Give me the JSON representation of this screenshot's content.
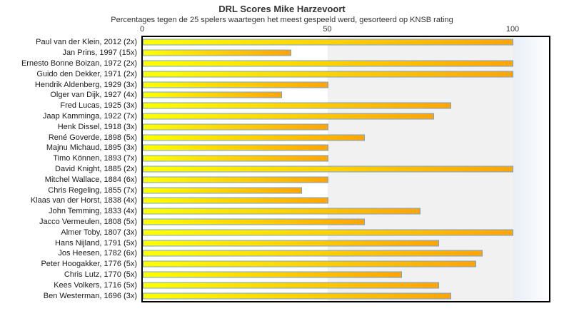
{
  "chart_data": {
    "type": "bar",
    "orientation": "horizontal",
    "title": "DRL Scores Mike Harzevoort",
    "subtitle": "Percentages tegen de 25 spelers waartegen het meest gespeeld werd, gesorteerd op KNSB rating",
    "xlim": [
      0,
      100
    ],
    "x_ticks": [
      0,
      50,
      100
    ],
    "legend": "none",
    "grid": "off",
    "players": [
      {
        "label": "Paul van der Klein, 2012 (2x)",
        "value": 100
      },
      {
        "label": "Jan Prins, 1997 (15x)",
        "value": 40
      },
      {
        "label": "Ernesto Bonne Boizan, 1972 (2x)",
        "value": 100
      },
      {
        "label": "Guido den Dekker, 1971 (2x)",
        "value": 100
      },
      {
        "label": "Hendrik Aldenberg, 1929 (3x)",
        "value": 50
      },
      {
        "label": "Olger van Dijk, 1927 (4x)",
        "value": 37.5
      },
      {
        "label": "Fred Lucas, 1925 (3x)",
        "value": 83.3
      },
      {
        "label": "Jaap Kamminga, 1922 (7x)",
        "value": 78.6
      },
      {
        "label": "Henk Dissel, 1918 (3x)",
        "value": 50
      },
      {
        "label": "René Goverde, 1898 (5x)",
        "value": 60
      },
      {
        "label": "Majnu Michaud, 1895 (3x)",
        "value": 50
      },
      {
        "label": "Timo Können, 1893 (7x)",
        "value": 50
      },
      {
        "label": "David Knight, 1885 (2x)",
        "value": 100
      },
      {
        "label": "Mitchel Wallace, 1884 (6x)",
        "value": 50
      },
      {
        "label": "Chris Regeling, 1855 (7x)",
        "value": 42.9
      },
      {
        "label": "Klaas van der Horst, 1838 (4x)",
        "value": 50
      },
      {
        "label": "John Temming, 1833 (4x)",
        "value": 75
      },
      {
        "label": "Jacco Vermeulen, 1808 (5x)",
        "value": 60
      },
      {
        "label": "Almer Toby, 1807 (3x)",
        "value": 100
      },
      {
        "label": "Hans Nijland, 1791 (5x)",
        "value": 80
      },
      {
        "label": "Jos Heesen, 1782 (6x)",
        "value": 91.7
      },
      {
        "label": "Peter Hoogakker, 1776 (5x)",
        "value": 90
      },
      {
        "label": "Chris Lutz, 1770 (5x)",
        "value": 70
      },
      {
        "label": "Kees Volkers, 1716 (5x)",
        "value": 80
      },
      {
        "label": "Ben Westerman, 1696 (3x)",
        "value": 83.3
      }
    ],
    "colors": {
      "bar_gradient_start": "#ffff00",
      "bar_gradient_end": "#ffa405",
      "bar_border": "#74a3d6",
      "zone_50_100": "#f1f1f2",
      "zone_over_100_start": "#e9eff7",
      "zone_over_100_end": "#fdfeff",
      "plot_border": "#000000",
      "text": "#333333"
    }
  }
}
